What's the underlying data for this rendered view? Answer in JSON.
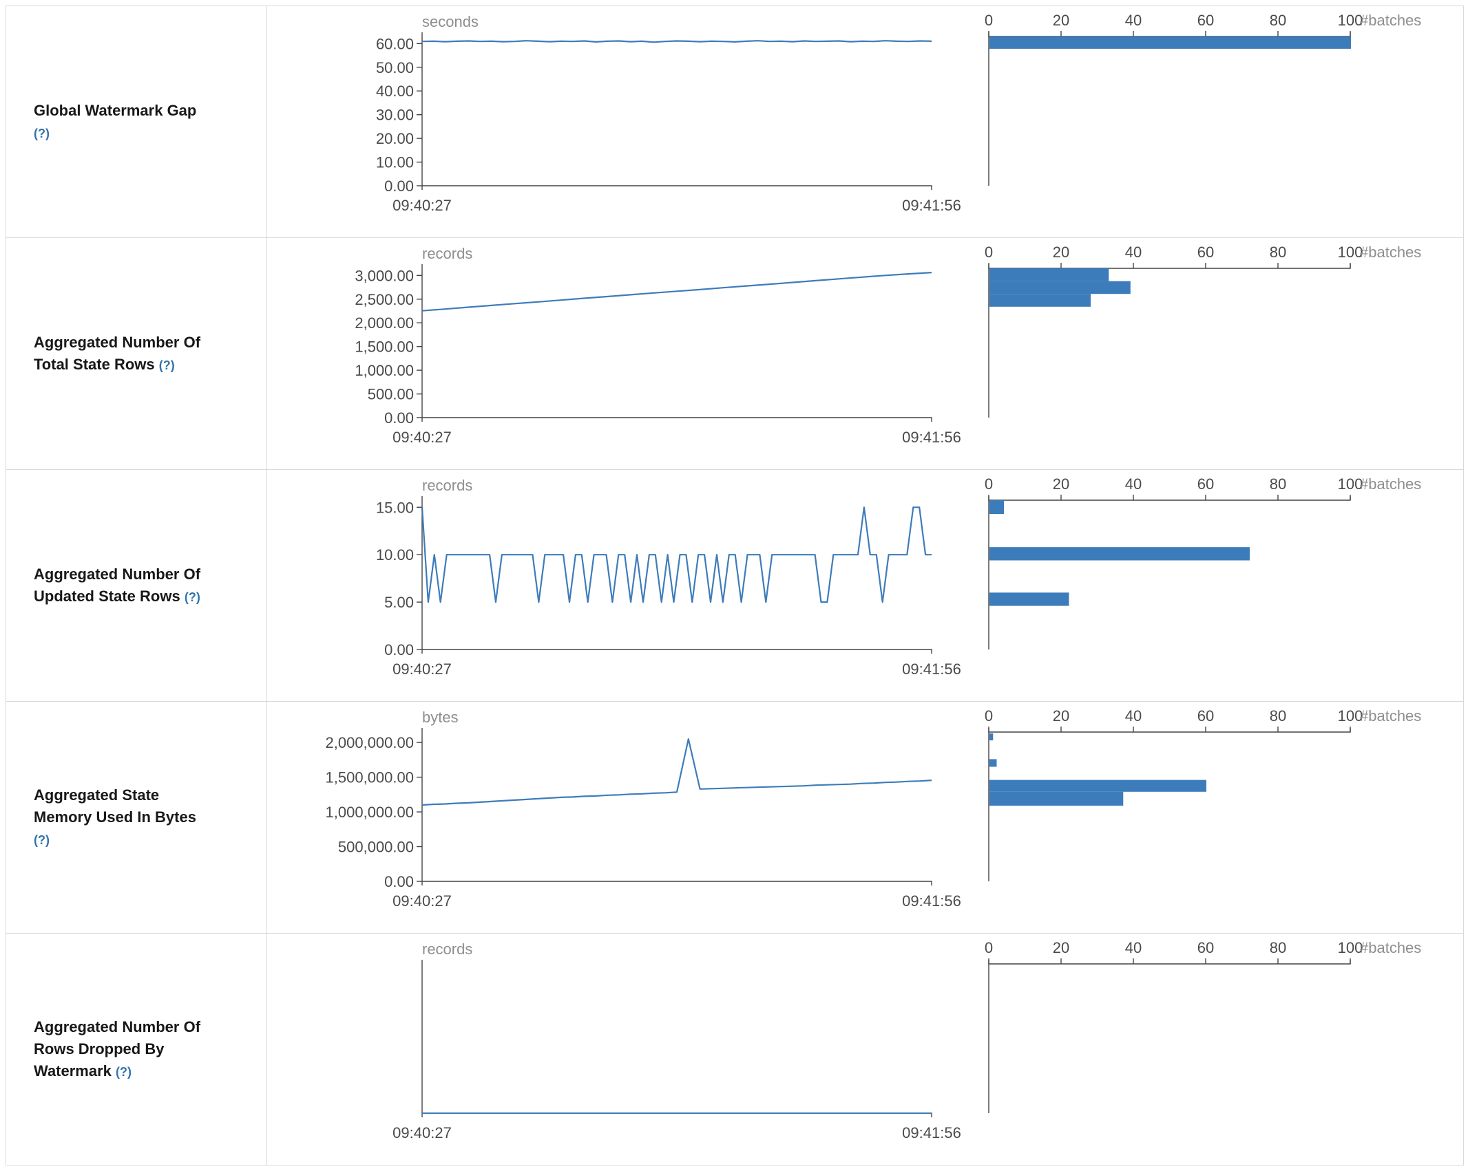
{
  "accent": "#3d7cba",
  "axis_color": "#444444",
  "tick_text_color": "#4a4a4a",
  "muted_text_color": "#8e8e8e",
  "batch_axis": {
    "label": "#batches",
    "max": 100,
    "values": [
      0,
      20,
      40,
      60,
      80,
      100
    ],
    "ticks": [
      "0",
      "20",
      "40",
      "60",
      "80",
      "100"
    ]
  },
  "chart_data": [
    {
      "type": "line+histogram",
      "title": "Global Watermark Gap",
      "help": "(?)",
      "unit": "seconds",
      "x_start": "09:40:27",
      "x_end": "09:41:56",
      "ymax": 63,
      "yticks": [
        {
          "v": 0,
          "label": "0.00"
        },
        {
          "v": 10,
          "label": "10.00"
        },
        {
          "v": 20,
          "label": "20.00"
        },
        {
          "v": 30,
          "label": "30.00"
        },
        {
          "v": 40,
          "label": "40.00"
        },
        {
          "v": 50,
          "label": "50.00"
        },
        {
          "v": 60,
          "label": "60.00"
        }
      ],
      "values": [
        60.9,
        61,
        60.8,
        61,
        61.1,
        60.9,
        61,
        60.8,
        60.9,
        61.2,
        61,
        60.8,
        61,
        60.9,
        61.1,
        60.7,
        61,
        61.1,
        60.8,
        61,
        60.6,
        60.9,
        61.1,
        61,
        60.8,
        61,
        60.9,
        60.7,
        61,
        61.2,
        60.9,
        61,
        60.8,
        61.1,
        60.9,
        61,
        61.1,
        60.8,
        61,
        60.9,
        61.2,
        61,
        60.9,
        61.1,
        61
      ],
      "histogram": [
        {
          "from": 57.8,
          "to": 63,
          "count": 100
        }
      ]
    },
    {
      "type": "line+histogram",
      "title": "Aggregated Number Of Total State Rows",
      "help": "(?)",
      "unit": "records",
      "x_start": "09:40:27",
      "x_end": "09:41:56",
      "ymax": 3150,
      "yticks": [
        {
          "v": 0,
          "label": "0.00"
        },
        {
          "v": 500,
          "label": "500.00"
        },
        {
          "v": 1000,
          "label": "1,000.00"
        },
        {
          "v": 1500,
          "label": "1,500.00"
        },
        {
          "v": 2000,
          "label": "2,000.00"
        },
        {
          "v": 2500,
          "label": "2,500.00"
        },
        {
          "v": 3000,
          "label": "3,000.00"
        }
      ],
      "values": [
        2255,
        2290,
        2330,
        2368,
        2405,
        2442,
        2480,
        2518,
        2555,
        2592,
        2630,
        2666,
        2702,
        2740,
        2778,
        2815,
        2853,
        2890,
        2928,
        2964,
        3000,
        3032,
        3062
      ],
      "histogram": [
        {
          "from": 2880,
          "to": 3150,
          "count": 33
        },
        {
          "from": 2610,
          "to": 2880,
          "count": 39
        },
        {
          "from": 2340,
          "to": 2610,
          "count": 28
        }
      ]
    },
    {
      "type": "line+histogram",
      "title": "Aggregated Number Of Updated State Rows",
      "help": "(?)",
      "unit": "records",
      "x_start": "09:40:27",
      "x_end": "09:41:56",
      "ymax": 15.75,
      "yticks": [
        {
          "v": 0,
          "label": "0.00"
        },
        {
          "v": 5,
          "label": "5.00"
        },
        {
          "v": 10,
          "label": "10.00"
        },
        {
          "v": 15,
          "label": "15.00"
        }
      ],
      "values": [
        15,
        5,
        10,
        5,
        10,
        10,
        10,
        10,
        10,
        10,
        10,
        10,
        5,
        10,
        10,
        10,
        10,
        10,
        10,
        5,
        10,
        10,
        10,
        10,
        5,
        10,
        10,
        5,
        10,
        10,
        10,
        5,
        10,
        10,
        5,
        10,
        5,
        10,
        10,
        5,
        10,
        5,
        10,
        10,
        5,
        10,
        10,
        5,
        10,
        5,
        10,
        10,
        5,
        10,
        10,
        10,
        5,
        10,
        10,
        10,
        10,
        10,
        10,
        10,
        10,
        5,
        5,
        10,
        10,
        10,
        10,
        10,
        15,
        10,
        10,
        5,
        10,
        10,
        10,
        10,
        15,
        15,
        10,
        10
      ],
      "histogram": [
        {
          "from": 14.3,
          "to": 15.75,
          "count": 4
        },
        {
          "from": 9.4,
          "to": 10.8,
          "count": 72
        },
        {
          "from": 4.6,
          "to": 6.0,
          "count": 22
        }
      ]
    },
    {
      "type": "line+histogram",
      "title": "Aggregated State Memory Used In Bytes",
      "help": "(?)",
      "unit": "bytes",
      "x_start": "09:40:27",
      "x_end": "09:41:56",
      "ymax": 2150000,
      "yticks": [
        {
          "v": 0,
          "label": "0.00"
        },
        {
          "v": 500000,
          "label": "500,000.00"
        },
        {
          "v": 1000000,
          "label": "1,000,000.00"
        },
        {
          "v": 1500000,
          "label": "1,500,000.00"
        },
        {
          "v": 2000000,
          "label": "2,000,000.00"
        }
      ],
      "values": [
        1100000,
        1110000,
        1115000,
        1125000,
        1130000,
        1140000,
        1150000,
        1160000,
        1170000,
        1180000,
        1190000,
        1200000,
        1210000,
        1215000,
        1225000,
        1230000,
        1240000,
        1245000,
        1255000,
        1260000,
        1270000,
        1275000,
        1285000,
        2050000,
        1330000,
        1335000,
        1340000,
        1345000,
        1350000,
        1355000,
        1360000,
        1365000,
        1370000,
        1375000,
        1385000,
        1390000,
        1395000,
        1400000,
        1410000,
        1415000,
        1425000,
        1430000,
        1440000,
        1445000,
        1455000
      ],
      "histogram": [
        {
          "from": 2030000,
          "to": 2130000,
          "count": 1
        },
        {
          "from": 1650000,
          "to": 1760000,
          "count": 2
        },
        {
          "from": 1290000,
          "to": 1460000,
          "count": 60
        },
        {
          "from": 1090000,
          "to": 1290000,
          "count": 37
        }
      ]
    },
    {
      "type": "line+histogram",
      "title": "Aggregated Number Of Rows Dropped By Watermark",
      "help": "(?)",
      "unit": "records",
      "x_start": "09:40:27",
      "x_end": "09:41:56",
      "ymax": 1,
      "yticks": [],
      "values": [
        0,
        0
      ],
      "histogram": []
    }
  ]
}
